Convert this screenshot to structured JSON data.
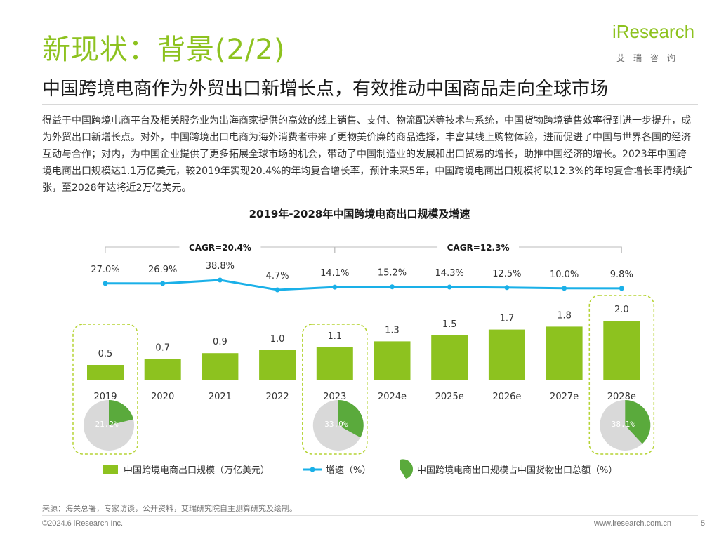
{
  "page": {
    "title": "新现状：背景(2/2)",
    "subtitle": "中国跨境电商作为外贸出口新增长点，有效推动中国商品走向全球市场",
    "body": "得益于中国跨境电商平台及相关服务业为出海商家提供的高效的线上销售、支付、物流配送等技术与系统，中国货物跨境销售效率得到进一步提升，成为外贸出口新增长点。对外，中国跨境出口电商为海外消费者带来了更物美价廉的商品选择，丰富其线上购物体验，进而促进了中国与世界各国的经济互动与合作；对内，为中国企业提供了更多拓展全球市场的机会，带动了中国制造业的发展和出口贸易的增长，助推中国经济的增长。2023年中国跨境电商出口规模达1.1万亿美元，较2019年实现20.4%的年均复合增长率，预计未来5年，中国跨境电商出口规模将以12.3%的年均复合增长率持续扩张，至2028年达将近2万亿美元。",
    "logo_text": "iResearch",
    "logo_cn": "艾瑞咨询",
    "source": "来源：海关总署，专家访谈，公开资料，艾瑞研究院自主测算研究及绘制。",
    "copyright": "©2024.6 iResearch Inc.",
    "website": "www.iresearch.com.cn",
    "page_number": "5"
  },
  "colors": {
    "accent_green": "#8dc21f",
    "line_blue": "#1ab0e8",
    "pie_grey": "#d9d9d9",
    "pie_green": "#5aaa3c",
    "text_dark": "#1a1a1a"
  },
  "chart_data": {
    "type": "bar",
    "title": "2019年-2028年中国跨境电商出口规模及增速",
    "categories": [
      "2019",
      "2020",
      "2021",
      "2022",
      "2023",
      "2024e",
      "2025e",
      "2026e",
      "2027e",
      "2028e"
    ],
    "series": [
      {
        "name": "中国跨境电商出口规模（万亿美元）",
        "type": "bar",
        "values": [
          0.5,
          0.7,
          0.9,
          1.0,
          1.1,
          1.3,
          1.5,
          1.7,
          1.8,
          2.0
        ],
        "labels": [
          "0.5",
          "0.7",
          "0.9",
          "1.0",
          "1.1",
          "1.3",
          "1.5",
          "1.7",
          "1.8",
          "2.0"
        ]
      },
      {
        "name": "增速（%）",
        "type": "line",
        "values": [
          27.0,
          26.9,
          38.8,
          4.7,
          14.1,
          15.2,
          14.3,
          12.5,
          10.0,
          9.8
        ],
        "labels": [
          "27.0%",
          "26.9%",
          "38.8%",
          "4.7%",
          "14.1%",
          "15.2%",
          "14.3%",
          "12.5%",
          "10.0%",
          "9.8%"
        ]
      }
    ],
    "pies": {
      "name": "中国跨境电商出口规模占中国货物出口总额（%）",
      "items": [
        {
          "category": "2019",
          "value": 21.2,
          "label": "21.2%"
        },
        {
          "category": "2023",
          "value": 33.0,
          "label": "33.0%"
        },
        {
          "category": "2028e",
          "value": 38.1,
          "label": "38.1%"
        }
      ]
    },
    "cagr": [
      {
        "label": "CAGR=20.4%",
        "from": "2019",
        "to": "2023"
      },
      {
        "label": "CAGR=12.3%",
        "from": "2023",
        "to": "2028e"
      }
    ],
    "highlighted": [
      "2019",
      "2023",
      "2028e"
    ],
    "grid": false,
    "legend_position": "bottom"
  }
}
